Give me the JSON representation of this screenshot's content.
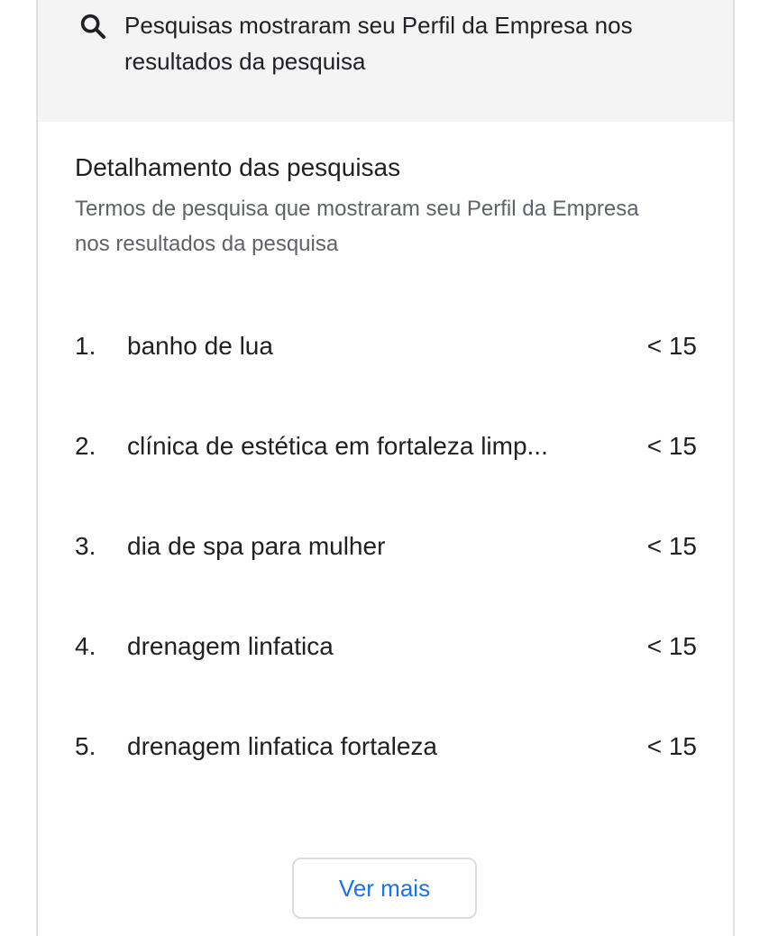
{
  "summary": {
    "icon": "search-icon",
    "text": "Pesquisas mostraram seu Perfil da Empresa nos resultados da pesquisa"
  },
  "breakdown": {
    "title": "Detalhamento das pesquisas",
    "subtitle": "Termos de pesquisa que mostraram seu Perfil da Empresa nos resultados da pesquisa",
    "items": [
      {
        "rank": "1.",
        "term": "banho de lua",
        "value": "< 15"
      },
      {
        "rank": "2.",
        "term": "clínica de estética em fortaleza limp...",
        "value": "< 15"
      },
      {
        "rank": "3.",
        "term": "dia de spa para mulher",
        "value": "< 15"
      },
      {
        "rank": "4.",
        "term": "drenagem linfatica",
        "value": "< 15"
      },
      {
        "rank": "5.",
        "term": "drenagem linfatica fortaleza",
        "value": "< 15"
      }
    ],
    "more_label": "Ver mais"
  },
  "colors": {
    "accent": "#1a73e8",
    "panel": "#f4f4f4"
  }
}
